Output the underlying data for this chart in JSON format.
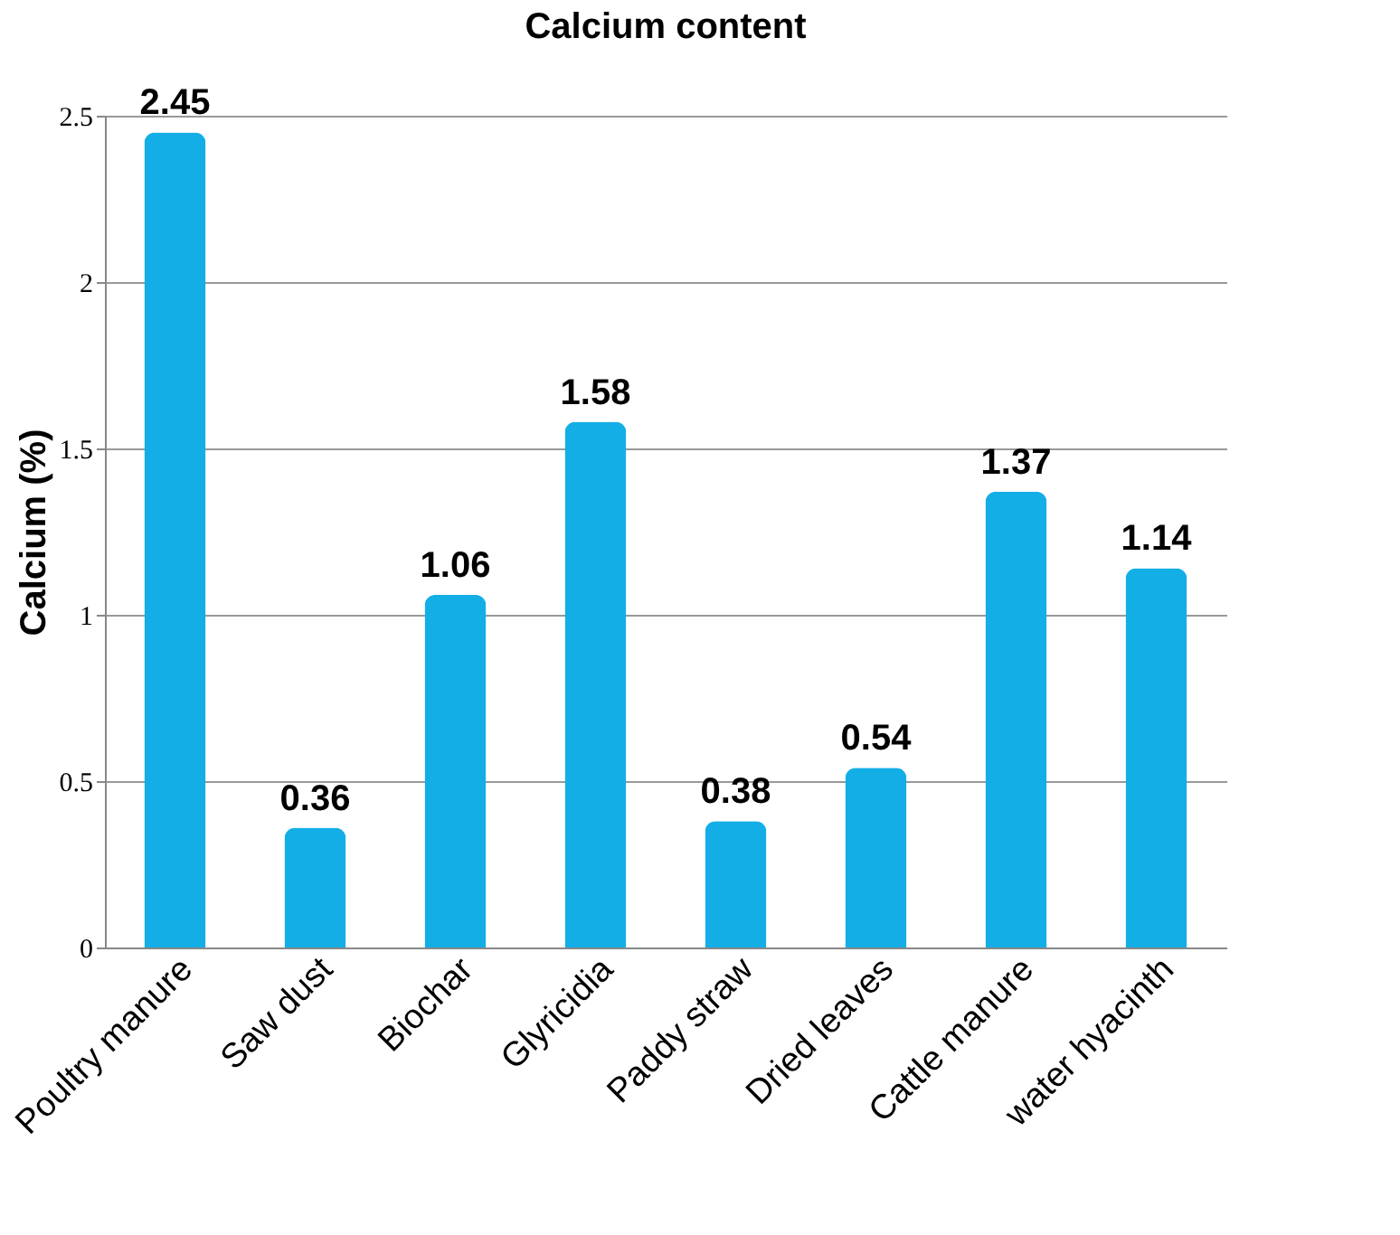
{
  "chart_data": {
    "type": "bar",
    "title": "Calcium content",
    "ylabel": "Calcium (%)",
    "categories": [
      "Poultry manure",
      "Saw dust",
      "Biochar",
      "Glyricidia",
      "Paddy straw",
      "Dried leaves",
      "Cattle manure",
      "water hyacinth"
    ],
    "values": [
      2.45,
      0.36,
      1.06,
      1.58,
      0.38,
      0.54,
      1.37,
      1.14
    ],
    "color": "#14aee6",
    "ylim": [
      0,
      2.5
    ],
    "yticks": [
      0,
      0.5,
      1,
      1.5,
      2,
      2.5
    ],
    "grid": "y",
    "data_labels": true
  }
}
